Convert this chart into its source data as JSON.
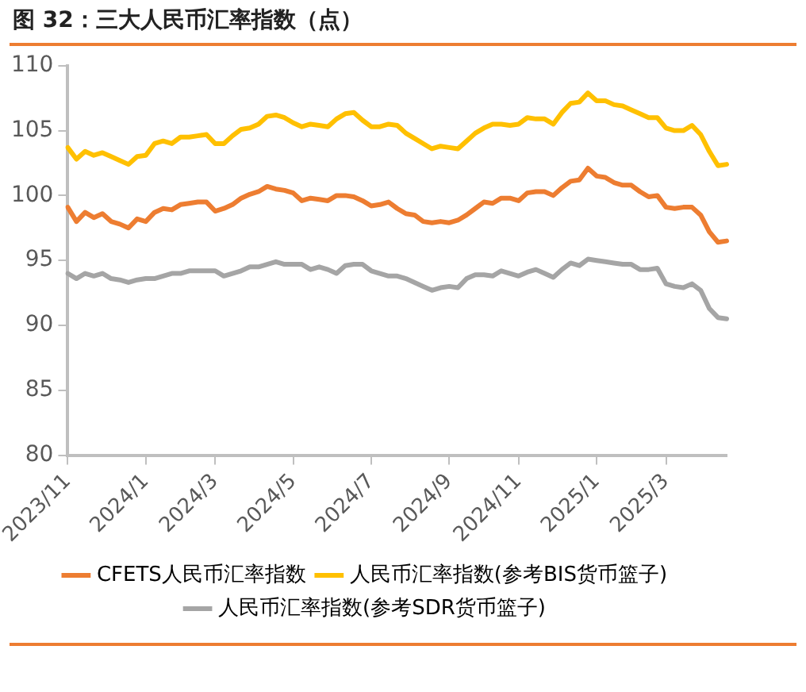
{
  "chart_data": {
    "type": "line",
    "title": "图 32：三大人民币汇率指数（点）",
    "categories": [
      "2023/11",
      null,
      null,
      null,
      null,
      null,
      null,
      null,
      null,
      "2024/1",
      null,
      null,
      null,
      null,
      null,
      null,
      null,
      "2024/3",
      null,
      null,
      null,
      null,
      null,
      null,
      null,
      null,
      "2024/5",
      null,
      null,
      null,
      null,
      null,
      null,
      null,
      null,
      "2024/7",
      null,
      null,
      null,
      null,
      null,
      null,
      null,
      null,
      "2024/9",
      null,
      null,
      null,
      null,
      null,
      null,
      null,
      "2024/11",
      null,
      null,
      null,
      null,
      null,
      null,
      null,
      null,
      "2025/1",
      null,
      null,
      null,
      null,
      null,
      null,
      null,
      "2025/3",
      null,
      null,
      null,
      null,
      null,
      null,
      null
    ],
    "series": [
      {
        "name": "CFETS人民币汇率指数",
        "color": "#ed7d31",
        "values": [
          99.1,
          98.0,
          98.7,
          98.3,
          98.6,
          98.0,
          97.8,
          97.5,
          98.2,
          98.0,
          98.7,
          99.0,
          98.9,
          99.3,
          99.4,
          99.5,
          99.5,
          98.8,
          99.0,
          99.3,
          99.8,
          100.1,
          100.3,
          100.7,
          100.5,
          100.4,
          100.2,
          99.6,
          99.8,
          99.7,
          99.6,
          100.0,
          100.0,
          99.9,
          99.6,
          99.2,
          99.3,
          99.5,
          99.0,
          98.6,
          98.5,
          98.0,
          97.9,
          98.0,
          97.9,
          98.1,
          98.5,
          99.0,
          99.5,
          99.4,
          99.8,
          99.8,
          99.6,
          100.2,
          100.3,
          100.3,
          100.0,
          100.6,
          101.1,
          101.2,
          102.1,
          101.5,
          101.4,
          101.0,
          100.8,
          100.8,
          100.3,
          99.9,
          100.0,
          99.1,
          99.0,
          99.1,
          99.1,
          98.5,
          97.2,
          96.4,
          96.5
        ]
      },
      {
        "name": "人民币汇率指数(参考BIS货币篮子)",
        "color": "#ffc000",
        "values": [
          103.7,
          102.8,
          103.4,
          103.1,
          103.3,
          103.0,
          102.7,
          102.4,
          103.0,
          103.1,
          104.0,
          104.2,
          104.0,
          104.5,
          104.5,
          104.6,
          104.7,
          104.0,
          104.0,
          104.6,
          105.1,
          105.2,
          105.5,
          106.1,
          106.2,
          106.0,
          105.6,
          105.3,
          105.5,
          105.4,
          105.3,
          105.9,
          106.3,
          106.4,
          105.8,
          105.3,
          105.3,
          105.5,
          105.4,
          104.8,
          104.4,
          104.0,
          103.6,
          103.8,
          103.7,
          103.6,
          104.2,
          104.8,
          105.2,
          105.5,
          105.5,
          105.4,
          105.5,
          106.0,
          105.9,
          105.9,
          105.5,
          106.4,
          107.1,
          107.2,
          107.9,
          107.3,
          107.3,
          107.0,
          106.9,
          106.6,
          106.3,
          106.0,
          106.0,
          105.2,
          105.0,
          105.0,
          105.4,
          104.7,
          103.4,
          102.3,
          102.4
        ]
      },
      {
        "name": "人民币汇率指数(参考SDR货币篮子)",
        "color": "#a5a5a5",
        "values": [
          94.0,
          93.6,
          94.0,
          93.8,
          94.0,
          93.6,
          93.5,
          93.3,
          93.5,
          93.6,
          93.6,
          93.8,
          94.0,
          94.0,
          94.2,
          94.2,
          94.2,
          94.2,
          93.8,
          94.0,
          94.2,
          94.5,
          94.5,
          94.7,
          94.9,
          94.7,
          94.7,
          94.7,
          94.3,
          94.5,
          94.3,
          94.0,
          94.6,
          94.7,
          94.7,
          94.2,
          94.0,
          93.8,
          93.8,
          93.6,
          93.3,
          93.0,
          92.7,
          92.9,
          93.0,
          92.9,
          93.6,
          93.9,
          93.9,
          93.8,
          94.2,
          94.0,
          93.8,
          94.1,
          94.3,
          94.0,
          93.7,
          94.3,
          94.8,
          94.6,
          95.1,
          95.0,
          94.9,
          94.8,
          94.7,
          94.7,
          94.3,
          94.3,
          94.4,
          93.2,
          93.0,
          92.9,
          93.2,
          92.7,
          91.3,
          90.6,
          90.5
        ]
      }
    ],
    "ylim": [
      80,
      110
    ],
    "yticks": [
      80,
      85,
      90,
      95,
      100,
      105,
      110
    ],
    "grid": false,
    "legend": "bottom",
    "marker": "none",
    "line_style": "solid"
  }
}
